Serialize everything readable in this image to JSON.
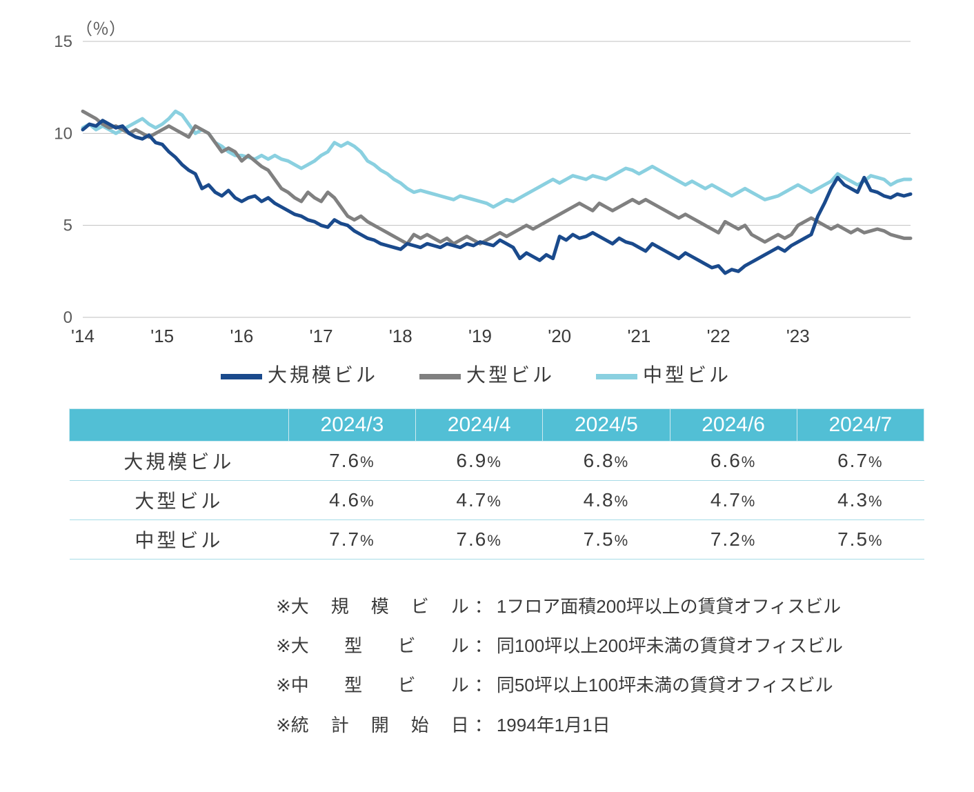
{
  "chart": {
    "type": "line",
    "y_unit_label": "（％）",
    "background_color": "#ffffff",
    "grid_color": "#bfbfbf",
    "ylim": [
      0,
      15
    ],
    "yticks": [
      0,
      5,
      10,
      15
    ],
    "ytick_labels": [
      "0",
      "5",
      "10",
      "15"
    ],
    "x_tick_labels": [
      "'14",
      "'15",
      "'16",
      "'17",
      "'18",
      "'19",
      "'20",
      "'21",
      "'22",
      "'23"
    ],
    "x_step_months": 12,
    "n_points": 126,
    "line_width": 5,
    "series": [
      {
        "name": "大規模ビル",
        "color": "#1a4a8c",
        "values": [
          10.2,
          10.5,
          10.4,
          10.7,
          10.5,
          10.3,
          10.4,
          10.0,
          9.8,
          9.7,
          9.9,
          9.5,
          9.4,
          9.0,
          8.7,
          8.3,
          8.0,
          7.8,
          7.0,
          7.2,
          6.8,
          6.6,
          6.9,
          6.5,
          6.3,
          6.5,
          6.6,
          6.3,
          6.5,
          6.2,
          6.0,
          5.8,
          5.6,
          5.5,
          5.3,
          5.2,
          5.0,
          4.9,
          5.3,
          5.1,
          5.0,
          4.7,
          4.5,
          4.3,
          4.2,
          4.0,
          3.9,
          3.8,
          3.7,
          4.0,
          3.9,
          3.8,
          4.0,
          3.9,
          3.8,
          4.0,
          3.9,
          3.8,
          4.0,
          3.9,
          4.1,
          4.0,
          3.9,
          4.2,
          4.0,
          3.8,
          3.2,
          3.5,
          3.3,
          3.1,
          3.4,
          3.2,
          4.4,
          4.2,
          4.5,
          4.3,
          4.4,
          4.6,
          4.4,
          4.2,
          4.0,
          4.3,
          4.1,
          4.0,
          3.8,
          3.6,
          4.0,
          3.8,
          3.6,
          3.4,
          3.2,
          3.5,
          3.3,
          3.1,
          2.9,
          2.7,
          2.8,
          2.4,
          2.6,
          2.5,
          2.8,
          3.0,
          3.2,
          3.4,
          3.6,
          3.8,
          3.6,
          3.9,
          4.1,
          4.3,
          4.5,
          5.5,
          6.2,
          7.0,
          7.6,
          7.2,
          7.0,
          6.8,
          7.6,
          6.9,
          6.8,
          6.6,
          6.5,
          6.7,
          6.6,
          6.7
        ]
      },
      {
        "name": "大型ビル",
        "color": "#808080",
        "values": [
          11.2,
          11.0,
          10.8,
          10.5,
          10.3,
          10.4,
          10.2,
          10.0,
          10.2,
          10.0,
          9.8,
          10.0,
          10.2,
          10.4,
          10.2,
          10.0,
          9.8,
          10.4,
          10.2,
          10.0,
          9.5,
          9.0,
          9.2,
          9.0,
          8.5,
          8.8,
          8.5,
          8.2,
          8.0,
          7.5,
          7.0,
          6.8,
          6.5,
          6.3,
          6.8,
          6.5,
          6.3,
          6.8,
          6.5,
          6.0,
          5.5,
          5.3,
          5.5,
          5.2,
          5.0,
          4.8,
          4.6,
          4.4,
          4.2,
          4.0,
          4.5,
          4.3,
          4.5,
          4.3,
          4.1,
          4.3,
          4.0,
          4.2,
          4.4,
          4.2,
          4.0,
          4.2,
          4.4,
          4.6,
          4.4,
          4.6,
          4.8,
          5.0,
          4.8,
          5.0,
          5.2,
          5.4,
          5.6,
          5.8,
          6.0,
          6.2,
          6.0,
          5.8,
          6.2,
          6.0,
          5.8,
          6.0,
          6.2,
          6.4,
          6.2,
          6.4,
          6.2,
          6.0,
          5.8,
          5.6,
          5.4,
          5.6,
          5.4,
          5.2,
          5.0,
          4.8,
          4.6,
          5.2,
          5.0,
          4.8,
          5.0,
          4.5,
          4.3,
          4.1,
          4.3,
          4.5,
          4.3,
          4.5,
          5.0,
          5.2,
          5.4,
          5.2,
          5.0,
          4.8,
          5.0,
          4.8,
          4.6,
          4.8,
          4.6,
          4.7,
          4.8,
          4.7,
          4.5,
          4.4,
          4.3,
          4.3
        ]
      },
      {
        "name": "中型ビル",
        "color": "#8ad0e0",
        "values": [
          10.3,
          10.5,
          10.2,
          10.4,
          10.2,
          10.0,
          10.2,
          10.4,
          10.6,
          10.8,
          10.5,
          10.3,
          10.5,
          10.8,
          11.2,
          11.0,
          10.5,
          10.0,
          10.2,
          10.0,
          9.5,
          9.3,
          9.0,
          8.8,
          8.8,
          8.7,
          8.6,
          8.8,
          8.6,
          8.8,
          8.6,
          8.5,
          8.3,
          8.1,
          8.3,
          8.5,
          8.8,
          9.0,
          9.5,
          9.3,
          9.5,
          9.3,
          9.0,
          8.5,
          8.3,
          8.0,
          7.8,
          7.5,
          7.3,
          7.0,
          6.8,
          6.9,
          6.8,
          6.7,
          6.6,
          6.5,
          6.4,
          6.6,
          6.5,
          6.4,
          6.3,
          6.2,
          6.0,
          6.2,
          6.4,
          6.3,
          6.5,
          6.7,
          6.9,
          7.1,
          7.3,
          7.5,
          7.3,
          7.5,
          7.7,
          7.6,
          7.5,
          7.7,
          7.6,
          7.5,
          7.7,
          7.9,
          8.1,
          8.0,
          7.8,
          8.0,
          8.2,
          8.0,
          7.8,
          7.6,
          7.4,
          7.2,
          7.4,
          7.2,
          7.0,
          7.2,
          7.0,
          6.8,
          6.6,
          6.8,
          7.0,
          6.8,
          6.6,
          6.4,
          6.5,
          6.6,
          6.8,
          7.0,
          7.2,
          7.0,
          6.8,
          7.0,
          7.2,
          7.4,
          7.8,
          7.6,
          7.4,
          7.2,
          7.4,
          7.7,
          7.6,
          7.5,
          7.2,
          7.4,
          7.5,
          7.5
        ]
      }
    ],
    "legend": [
      {
        "label": "大規模ビル",
        "color": "#1a4a8c"
      },
      {
        "label": "大型ビル",
        "color": "#808080"
      },
      {
        "label": "中型ビル",
        "color": "#8ad0e0"
      }
    ]
  },
  "table": {
    "header_bg": "#52bfd5",
    "header_fg": "#ffffff",
    "row_border": "#a6dbe6",
    "columns": [
      "2024/3",
      "2024/4",
      "2024/5",
      "2024/6",
      "2024/7"
    ],
    "rows": [
      {
        "label": "大規模ビル",
        "cells": [
          "7.6",
          "6.9",
          "6.8",
          "6.6",
          "6.7"
        ]
      },
      {
        "label": "大型ビル",
        "cells": [
          "4.6",
          "4.7",
          "4.8",
          "4.7",
          "4.3"
        ]
      },
      {
        "label": "中型ビル",
        "cells": [
          "7.7",
          "7.6",
          "7.5",
          "7.2",
          "7.5"
        ]
      }
    ],
    "unit_suffix": "%"
  },
  "notes": {
    "prefix": "※",
    "items": [
      {
        "term": "大規模ビル",
        "desc": "1フロア面積200坪以上の賃貸オフィスビル"
      },
      {
        "term": "大型ビル",
        "desc": "同100坪以上200坪未満の賃貸オフィスビル"
      },
      {
        "term": "中型ビル",
        "desc": "同50坪以上100坪未満の賃貸オフィスビル"
      },
      {
        "term": "統計開始日",
        "desc": "1994年1月1日"
      }
    ]
  }
}
